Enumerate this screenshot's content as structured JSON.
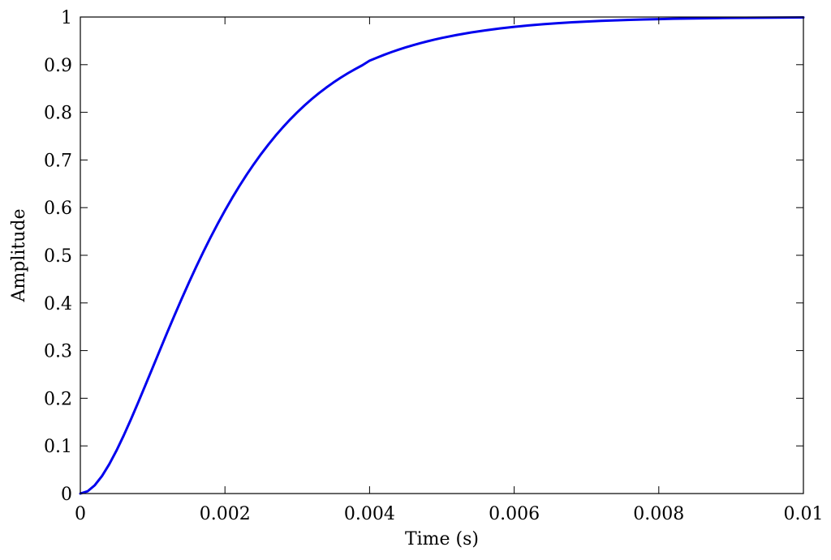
{
  "chart_data": {
    "type": "line",
    "title": "",
    "xlabel": "Time (s)",
    "ylabel": "Amplitude",
    "xlim": [
      0,
      0.01
    ],
    "ylim": [
      0,
      1
    ],
    "grid": false,
    "x_ticks": [
      0,
      0.002,
      0.004,
      0.006,
      0.008,
      0.01
    ],
    "x_tick_labels": [
      "0",
      "0.002",
      "0.004",
      "0.006",
      "0.008",
      "0.01"
    ],
    "y_ticks": [
      0,
      0.1,
      0.2,
      0.3,
      0.4,
      0.5,
      0.6,
      0.7,
      0.8,
      0.9,
      1
    ],
    "y_tick_labels": [
      "0",
      "0.1",
      "0.2",
      "0.3",
      "0.4",
      "0.5",
      "0.6",
      "0.7",
      "0.8",
      "0.9",
      "1"
    ],
    "series": [
      {
        "color": "#0000ee",
        "x": [
          0,
          0.0001,
          0.0002,
          0.0003,
          0.0004,
          0.0005,
          0.0006,
          0.0007,
          0.0008,
          0.0009,
          0.001,
          0.0011,
          0.0012,
          0.0013,
          0.0014,
          0.0015,
          0.0016,
          0.0017,
          0.0018,
          0.0019,
          0.002,
          0.0021,
          0.0022,
          0.0023,
          0.0024,
          0.0025,
          0.0026,
          0.0027,
          0.0028,
          0.0029,
          0.003,
          0.0031,
          0.0032,
          0.0033,
          0.0034,
          0.0035,
          0.0036,
          0.0037,
          0.0038,
          0.0039,
          0.004,
          0.0041,
          0.0042,
          0.0043,
          0.0044,
          0.0045,
          0.0046,
          0.0047,
          0.0048,
          0.0049,
          0.005,
          0.0052,
          0.0054,
          0.0056,
          0.0058,
          0.006,
          0.0062,
          0.0064,
          0.0066,
          0.0068,
          0.007,
          0.0072,
          0.0074,
          0.0076,
          0.0078,
          0.008,
          0.0082,
          0.0084,
          0.0086,
          0.0088,
          0.009,
          0.0092,
          0.0094,
          0.0096,
          0.0098,
          0.01
        ],
        "y": [
          0,
          0.0047,
          0.0175,
          0.0369,
          0.0616,
          0.0902,
          0.1219,
          0.1558,
          0.1912,
          0.2275,
          0.2642,
          0.301,
          0.3374,
          0.3732,
          0.4082,
          0.4422,
          0.4751,
          0.5068,
          0.5372,
          0.5663,
          0.594,
          0.6204,
          0.6454,
          0.6691,
          0.6914,
          0.7125,
          0.7323,
          0.751,
          0.7684,
          0.7848,
          0.8001,
          0.8144,
          0.8278,
          0.8402,
          0.8518,
          0.8626,
          0.8727,
          0.882,
          0.8907,
          0.8988,
          0.9084,
          0.9146,
          0.9206,
          0.9262,
          0.9314,
          0.9363,
          0.9408,
          0.9451,
          0.949,
          0.9527,
          0.9561,
          0.9622,
          0.9675,
          0.972,
          0.976,
          0.9794,
          0.9823,
          0.9849,
          0.987,
          0.9889,
          0.9905,
          0.9919,
          0.993,
          0.9941,
          0.9949,
          0.9956,
          0.9963,
          0.9968,
          0.9973,
          0.9977,
          0.998,
          0.9983,
          0.9986,
          0.9988,
          0.999,
          0.9991
        ]
      }
    ]
  }
}
